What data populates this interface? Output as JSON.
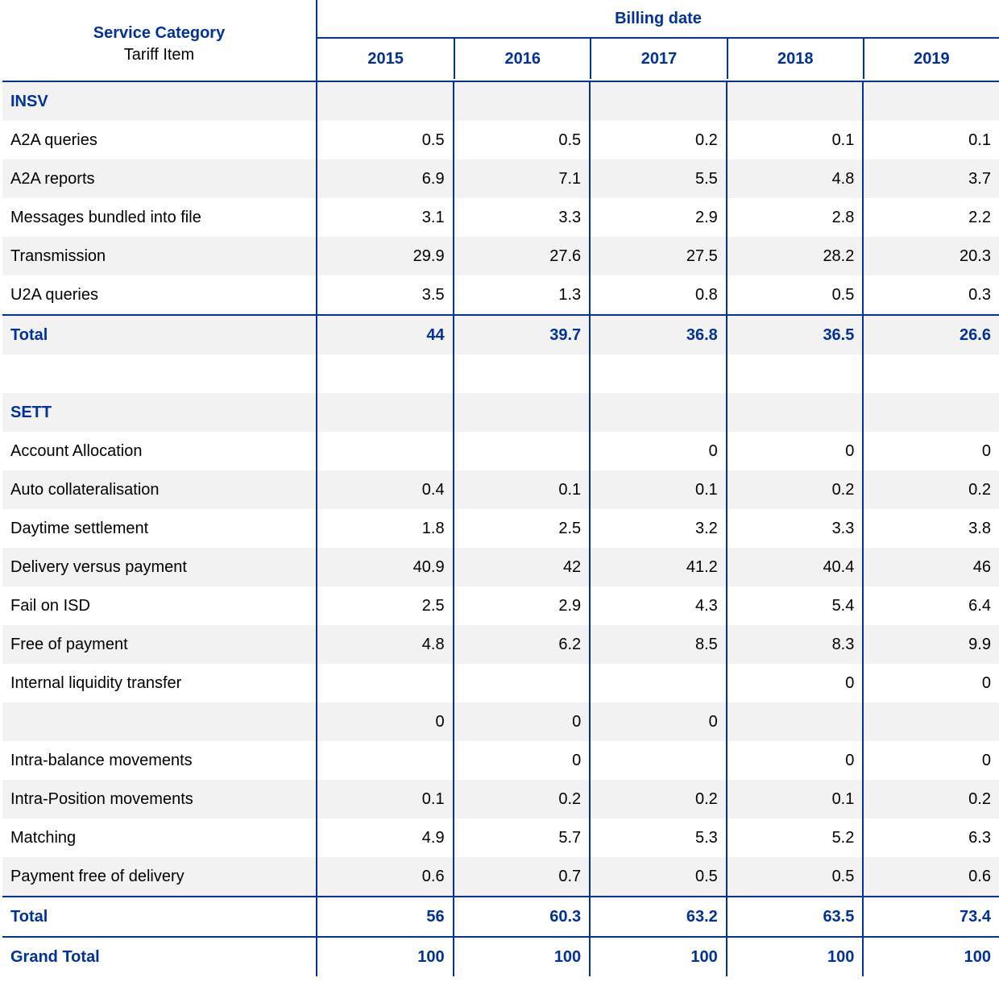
{
  "header": {
    "service_category": "Service Category",
    "tariff_item": "Tariff Item",
    "billing_date": "Billing date",
    "years": [
      "2015",
      "2016",
      "2017",
      "2018",
      "2019"
    ]
  },
  "rows": [
    {
      "kind": "section",
      "label": "INSV",
      "values": [
        "",
        "",
        "",
        "",
        ""
      ],
      "shade": true
    },
    {
      "kind": "item",
      "label": "A2A queries",
      "values": [
        "0.5",
        "0.5",
        "0.2",
        "0.1",
        "0.1"
      ],
      "shade": false
    },
    {
      "kind": "item",
      "label": "A2A reports",
      "values": [
        "6.9",
        "7.1",
        "5.5",
        "4.8",
        "3.7"
      ],
      "shade": true
    },
    {
      "kind": "item",
      "label": "Messages bundled into file",
      "values": [
        "3.1",
        "3.3",
        "2.9",
        "2.8",
        "2.2"
      ],
      "shade": false
    },
    {
      "kind": "item",
      "label": "Transmission",
      "values": [
        "29.9",
        "27.6",
        "27.5",
        "28.2",
        "20.3"
      ],
      "shade": true
    },
    {
      "kind": "item",
      "label": "U2A queries",
      "values": [
        "3.5",
        "1.3",
        "0.8",
        "0.5",
        "0.3"
      ],
      "shade": false
    },
    {
      "kind": "total",
      "label": "Total",
      "values": [
        "44",
        "39.7",
        "36.8",
        "36.5",
        "26.6"
      ],
      "shade": true
    },
    {
      "kind": "blank",
      "label": "",
      "values": [
        "",
        "",
        "",
        "",
        ""
      ],
      "shade": false
    },
    {
      "kind": "section",
      "label": "SETT",
      "values": [
        "",
        "",
        "",
        "",
        ""
      ],
      "shade": true
    },
    {
      "kind": "item",
      "label": "Account Allocation",
      "values": [
        "",
        "",
        "0",
        "0",
        "0"
      ],
      "shade": false
    },
    {
      "kind": "item",
      "label": "Auto collateralisation",
      "values": [
        "0.4",
        "0.1",
        "0.1",
        "0.2",
        "0.2"
      ],
      "shade": true
    },
    {
      "kind": "item",
      "label": "Daytime settlement",
      "values": [
        "1.8",
        "2.5",
        "3.2",
        "3.3",
        "3.8"
      ],
      "shade": false
    },
    {
      "kind": "item",
      "label": "Delivery versus payment",
      "values": [
        "40.9",
        "42",
        "41.2",
        "40.4",
        "46"
      ],
      "shade": true
    },
    {
      "kind": "item",
      "label": "Fail on ISD",
      "values": [
        "2.5",
        "2.9",
        "4.3",
        "5.4",
        "6.4"
      ],
      "shade": false
    },
    {
      "kind": "item",
      "label": "Free of payment",
      "values": [
        "4.8",
        "6.2",
        "8.5",
        "8.3",
        "9.9"
      ],
      "shade": true
    },
    {
      "kind": "item",
      "label": "Internal liquidity transfer",
      "values": [
        "",
        "",
        "",
        "0",
        "0"
      ],
      "shade": false
    },
    {
      "kind": "item",
      "label": "",
      "values": [
        "0",
        "0",
        "0",
        "",
        ""
      ],
      "shade": true
    },
    {
      "kind": "item",
      "label": "Intra-balance movements",
      "values": [
        "",
        "0",
        "",
        "0",
        "0"
      ],
      "shade": false
    },
    {
      "kind": "item",
      "label": "Intra-Position movements",
      "values": [
        "0.1",
        "0.2",
        "0.2",
        "0.1",
        "0.2"
      ],
      "shade": true
    },
    {
      "kind": "item",
      "label": "Matching",
      "values": [
        "4.9",
        "5.7",
        "5.3",
        "5.2",
        "6.3"
      ],
      "shade": false
    },
    {
      "kind": "item",
      "label": "Payment free of delivery",
      "values": [
        "0.6",
        "0.7",
        "0.5",
        "0.5",
        "0.6"
      ],
      "shade": true
    },
    {
      "kind": "total",
      "label": "Total",
      "values": [
        "56",
        "60.3",
        "63.2",
        "63.5",
        "73.4"
      ],
      "shade": false
    },
    {
      "kind": "total",
      "label": "Grand Total",
      "values": [
        "100",
        "100",
        "100",
        "100",
        "100"
      ],
      "shade": false
    }
  ],
  "colors": {
    "accent": "#003299",
    "shade": "#f2f2f2",
    "text": "#000000"
  }
}
